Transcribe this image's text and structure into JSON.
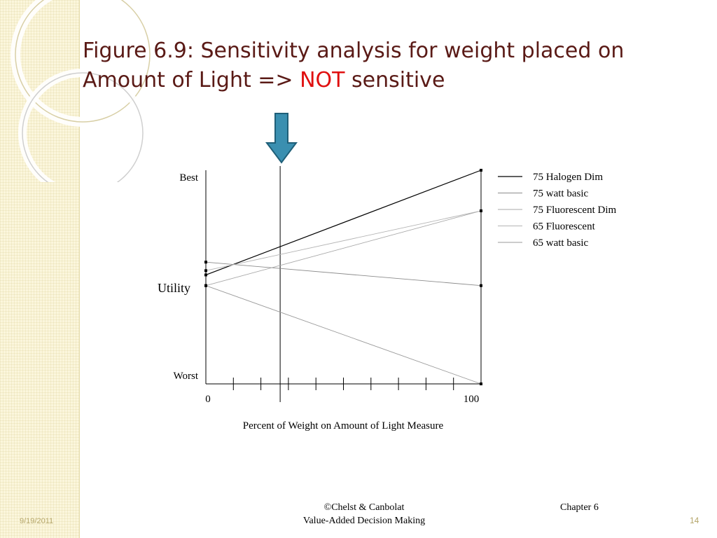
{
  "slide": {
    "title_main": "Figure 6.9: Sensitivity analysis for weight placed on Amount of Light => ",
    "title_highlight": "NOT",
    "title_tail": " sensitive",
    "colors": {
      "title": "#5a1a16",
      "highlight": "#e01010",
      "arrow": "#3a8fb0",
      "sidebar": "#fbf6dc"
    }
  },
  "chart_data": {
    "type": "line",
    "xlabel": "Percent of Weight on Amount of Light Measure",
    "ylabel": "Utility",
    "y_top_label": "Best",
    "y_bottom_label": "Worst",
    "x_tick_labels": [
      "0",
      "100"
    ],
    "xlim": [
      0,
      100
    ],
    "ylim": [
      0,
      1
    ],
    "x_ticks": [
      10,
      20,
      30,
      40,
      50,
      60,
      70,
      80,
      90
    ],
    "current_weight": 27,
    "legend_position": "right",
    "series": [
      {
        "name": "75 Halogen Dim",
        "x": [
          0,
          100
        ],
        "values": [
          0.51,
          1.0
        ],
        "color": "#000000"
      },
      {
        "name": "75 watt basic",
        "x": [
          0,
          100
        ],
        "values": [
          0.57,
          0.46
        ],
        "color": "#8c8c8c"
      },
      {
        "name": "75 Fluorescent Dim",
        "x": [
          0,
          100
        ],
        "values": [
          0.46,
          0.81
        ],
        "color": "#a8a8a8"
      },
      {
        "name": "65 Fluorescent",
        "x": [
          0,
          100
        ],
        "values": [
          0.53,
          0.81
        ],
        "color": "#b4b4b4"
      },
      {
        "name": "65 watt basic",
        "x": [
          0,
          100
        ],
        "values": [
          0.46,
          0.0
        ],
        "color": "#9a9a9a"
      }
    ]
  },
  "footer": {
    "copyright": "©Chelst & Canbolat",
    "book": "Value-Added Decision Making",
    "chapter": "Chapter 6",
    "date": "9/19/2011",
    "page": "14"
  }
}
